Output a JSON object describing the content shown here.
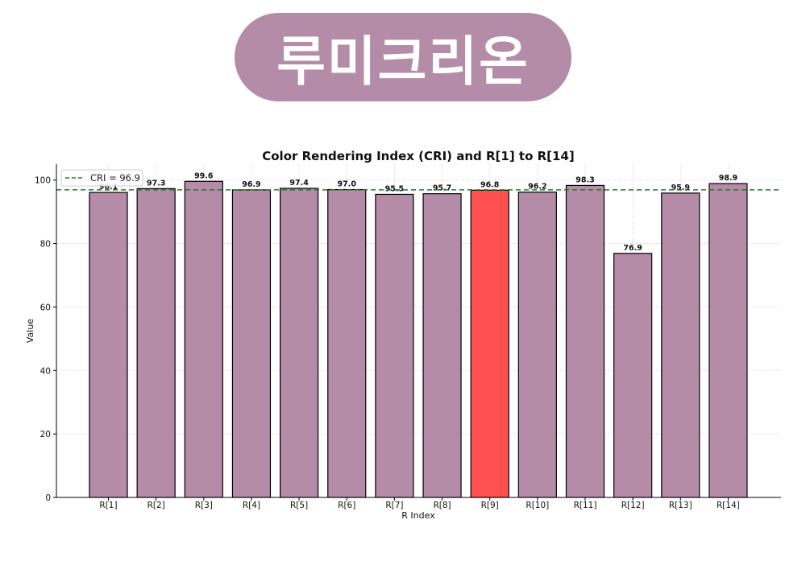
{
  "brand": {
    "label": "루미크리온",
    "color": "#b48ca8"
  },
  "chart_data": {
    "type": "bar",
    "title": "Color Rendering Index (CRI) and R[1] to R[14]",
    "xlabel": "R Index",
    "ylabel": "Value",
    "categories": [
      "R[1]",
      "R[2]",
      "R[3]",
      "R[4]",
      "R[5]",
      "R[6]",
      "R[7]",
      "R[8]",
      "R[9]",
      "R[10]",
      "R[11]",
      "R[12]",
      "R[13]",
      "R[14]"
    ],
    "values": [
      96.1,
      97.3,
      99.6,
      96.9,
      97.4,
      97.0,
      95.5,
      95.7,
      96.8,
      96.2,
      98.3,
      76.9,
      95.9,
      98.9
    ],
    "value_labels": [
      "96.1",
      "97.3",
      "99.6",
      "96.9",
      "97.4",
      "97.0",
      "95.5",
      "95.7",
      "96.8",
      "96.2",
      "98.3",
      "76.9",
      "95.9",
      "98.9"
    ],
    "bar_color": "#b48ca8",
    "highlight_index": 8,
    "highlight_color": "#ff5050",
    "reference_line": {
      "value": 96.9,
      "label": "CRI = 96.9",
      "color": "#1e7d1e",
      "style": "dashed"
    },
    "ylim": [
      0,
      105
    ],
    "yticks": [
      0,
      20,
      40,
      60,
      80,
      100
    ],
    "grid": true,
    "legend_position": "top-left"
  }
}
